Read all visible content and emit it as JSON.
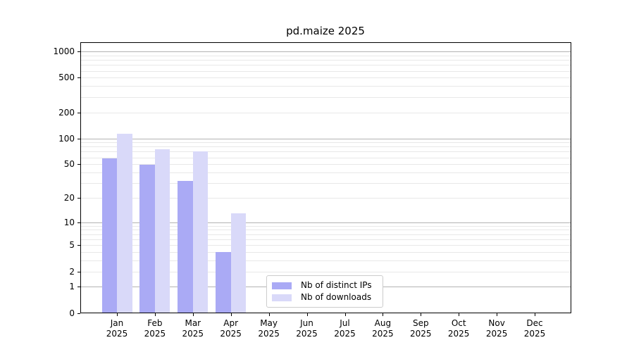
{
  "title": "pd.maize 2025",
  "chart_data": {
    "type": "bar",
    "title": "pd.maize 2025",
    "yscale": "log1p-symlog",
    "ylim": [
      0,
      1280
    ],
    "yticks": [
      1000,
      500,
      200,
      100,
      50,
      20,
      10,
      5,
      2,
      1,
      0
    ],
    "grid": "horizontal major+minor",
    "categories": [
      "Jan",
      "Feb",
      "Mar",
      "Apr",
      "May",
      "Jun",
      "Jul",
      "Aug",
      "Sep",
      "Oct",
      "Nov",
      "Dec"
    ],
    "year_label": "2025",
    "series": [
      {
        "name": "Nb of distinct IPs",
        "color": "#aaaaf5",
        "values": [
          58,
          49,
          32,
          4,
          0,
          0,
          0,
          0,
          0,
          0,
          0,
          0
        ]
      },
      {
        "name": "Nb of downloads",
        "color": "#d9d9f9",
        "values": [
          114,
          75,
          70,
          13,
          0,
          0,
          0,
          0,
          0,
          0,
          0,
          0
        ]
      }
    ],
    "legend_position": "lower center"
  },
  "colors": {
    "background": "#ffffff",
    "axis": "#000000",
    "grid_major": "#b3b3b3",
    "grid_minor": "#e8e8e8",
    "legend_border": "#cccccc",
    "text": "#000000"
  }
}
